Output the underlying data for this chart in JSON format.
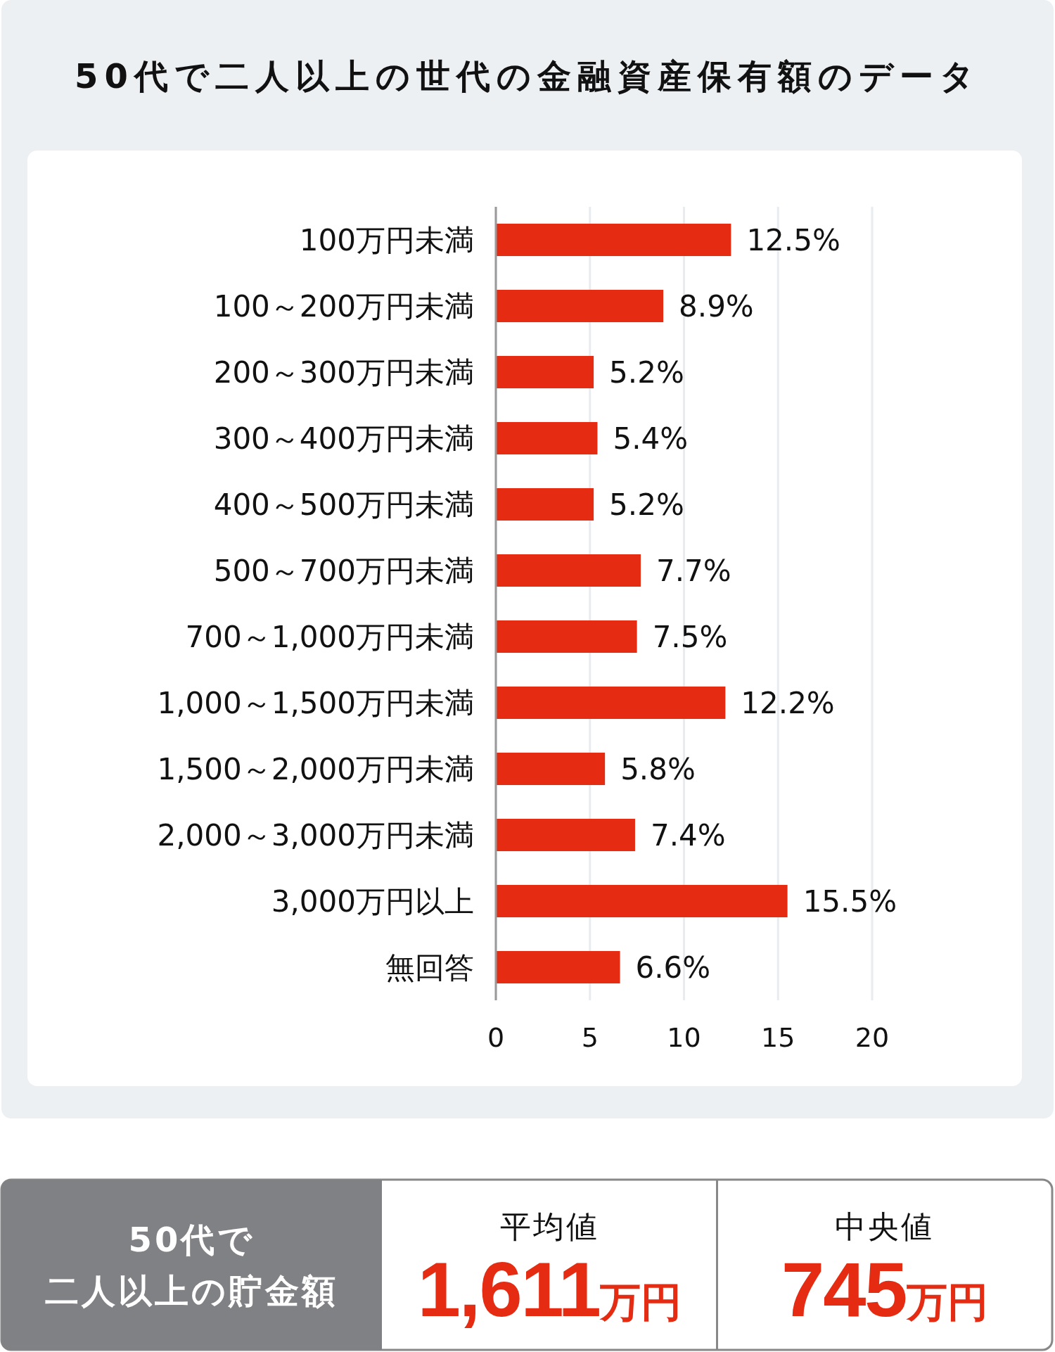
{
  "chart_data": [
    {
      "type": "bar",
      "orientation": "horizontal",
      "title": "50代で二人以上の世代の金融資産保有額のデータ",
      "categories": [
        "100万円未満",
        "100～200万円未満",
        "200～300万円未満",
        "300～400万円未満",
        "400～500万円未満",
        "500～700万円未満",
        "700～1,000万円未満",
        "1,000～1,500万円未満",
        "1,500～2,000万円未満",
        "2,000～3,000万円未満",
        "3,000万円以上",
        "無回答"
      ],
      "values": [
        12.5,
        8.9,
        5.2,
        5.4,
        5.2,
        7.7,
        7.5,
        12.2,
        5.8,
        7.4,
        15.5,
        6.6
      ],
      "value_labels": [
        "12.5%",
        "8.9%",
        "5.2%",
        "5.4%",
        "5.2%",
        "7.7%",
        "7.5%",
        "12.2%",
        "5.8%",
        "7.4%",
        "15.5%",
        "6.6%"
      ],
      "color": "#e52b12",
      "xlim": [
        0,
        20
      ],
      "xticks": [
        0,
        5,
        10,
        15,
        20
      ],
      "grid": "x"
    },
    {
      "type": "other",
      "title": "50代で",
      "subtitle": "二人以上の貯金額",
      "annotations": [
        "平均値",
        "1,611万円",
        "中央値",
        "745万円"
      ]
    }
  ]
}
